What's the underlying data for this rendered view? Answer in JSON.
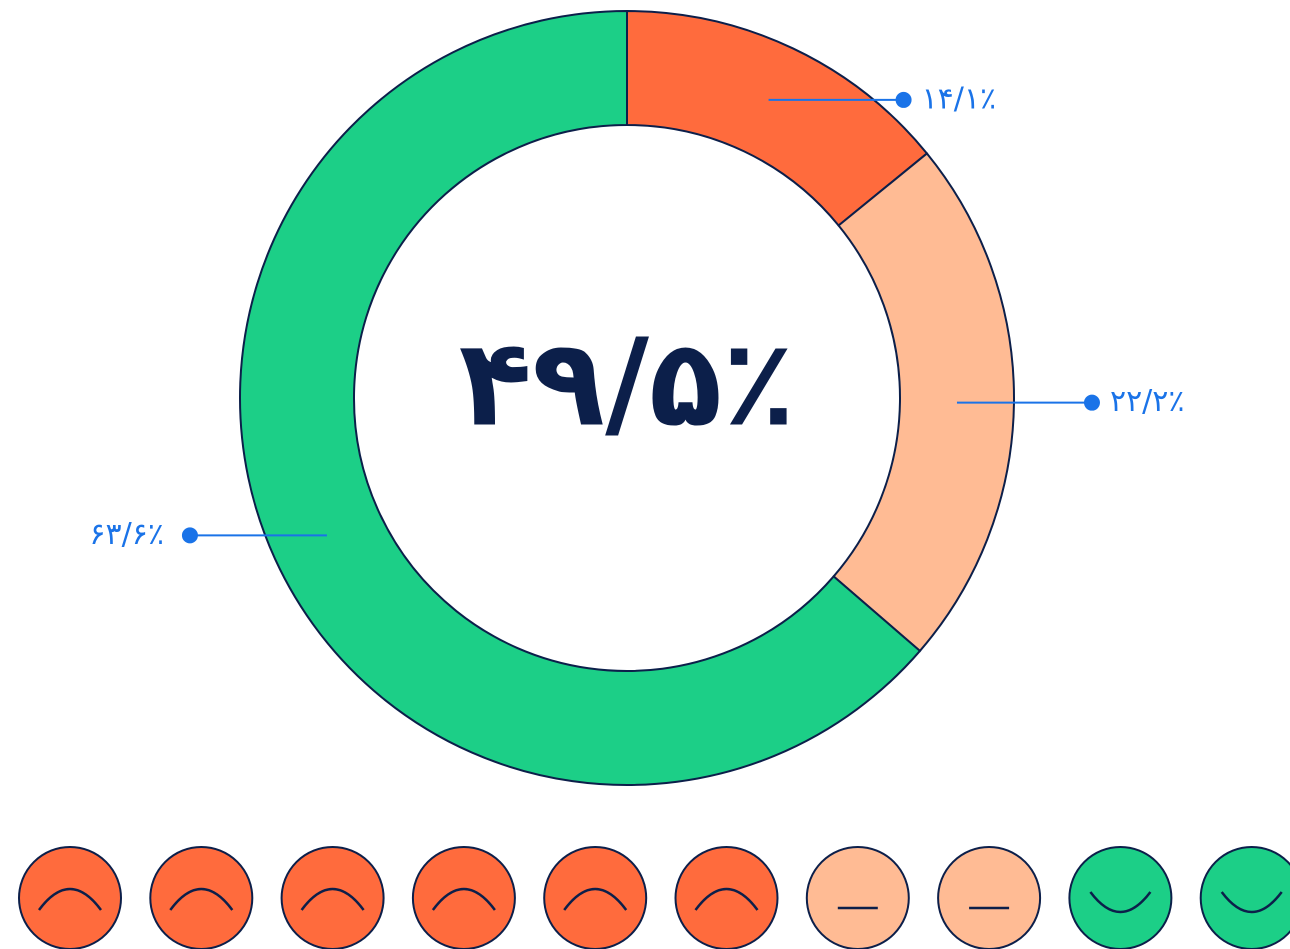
{
  "chart_data": {
    "type": "pie",
    "donut": true,
    "annotation": "۴۹/۵٪",
    "values": [
      14.1,
      22.2,
      63.6
    ],
    "value_labels": [
      "۱۴/۱٪",
      "۲۲/۲٪",
      "۶۳/۶٪"
    ],
    "colors": [
      "#ff6b3d",
      "#ffbb94",
      "#1ccf87"
    ]
  }
}
